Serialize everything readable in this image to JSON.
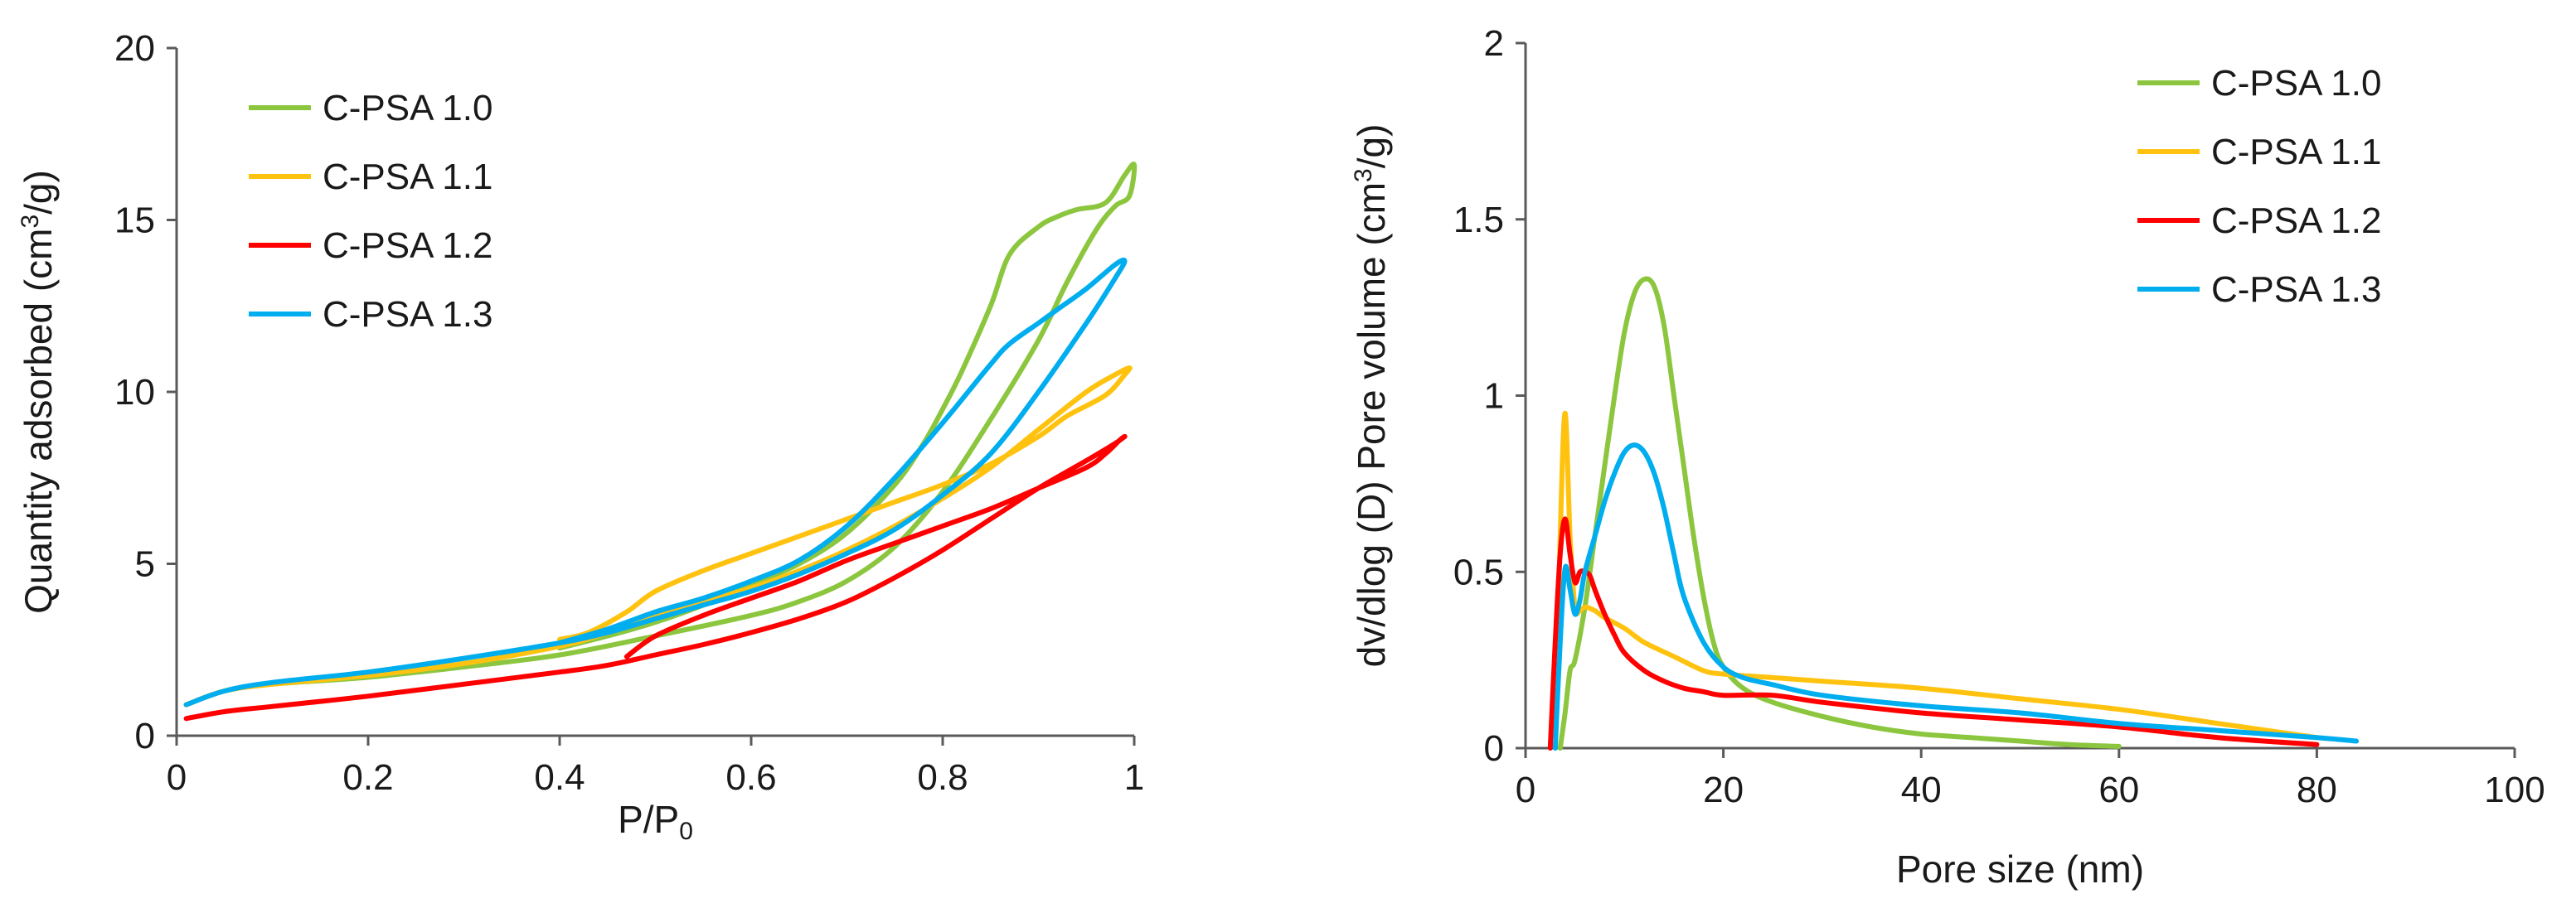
{
  "chart_data": [
    {
      "type": "line",
      "title": "",
      "xlabel": "P/P",
      "xlabel_sub": "0",
      "ylabel": "Quantity adsorbed  (cm",
      "ylabel_sup": "3",
      "ylabel_tail": "/g)",
      "xlim": [
        0,
        1
      ],
      "ylim": [
        0,
        20
      ],
      "xticks": [
        0,
        0.2,
        0.4,
        0.6,
        0.8,
        1
      ],
      "xtick_labels": [
        "0",
        "0.2",
        "0.4",
        "0.6",
        "0.8",
        "1"
      ],
      "yticks": [
        0,
        5,
        10,
        15,
        20
      ],
      "ytick_labels": [
        "0",
        "5",
        "10",
        "15",
        "20"
      ],
      "grid": false,
      "legend_position": "top-left",
      "series": [
        {
          "name": "C-PSA 1.0",
          "color": "#8CC63F",
          "x": [
            0.01,
            0.05,
            0.1,
            0.2,
            0.3,
            0.4,
            0.5,
            0.6,
            0.65,
            0.7,
            0.75,
            0.8,
            0.85,
            0.9,
            0.93,
            0.96,
            0.98,
            0.995,
            1.0,
            0.99,
            0.97,
            0.94,
            0.92,
            0.9,
            0.87,
            0.85,
            0.82,
            0.8,
            0.78,
            0.75,
            0.7,
            0.65,
            0.6,
            0.55,
            0.5,
            0.45,
            0.4
          ],
          "y": [
            0.9,
            1.3,
            1.5,
            1.7,
            2.0,
            2.35,
            2.9,
            3.5,
            3.9,
            4.5,
            5.5,
            7.1,
            9.2,
            11.5,
            13.2,
            14.7,
            15.4,
            15.7,
            16.6,
            16.3,
            15.5,
            15.3,
            15.1,
            14.8,
            14.0,
            12.5,
            10.6,
            9.5,
            8.5,
            7.3,
            5.9,
            5.0,
            4.4,
            3.8,
            3.3,
            2.9,
            2.55
          ]
        },
        {
          "name": "C-PSA 1.1",
          "color": "#FFC20E",
          "x": [
            0.01,
            0.05,
            0.1,
            0.2,
            0.3,
            0.4,
            0.45,
            0.5,
            0.55,
            0.6,
            0.65,
            0.7,
            0.75,
            0.8,
            0.85,
            0.9,
            0.95,
            0.98,
            0.995,
            0.99,
            0.97,
            0.93,
            0.9,
            0.85,
            0.8,
            0.75,
            0.7,
            0.65,
            0.6,
            0.55,
            0.5,
            0.47,
            0.43,
            0.4
          ],
          "y": [
            0.9,
            1.3,
            1.5,
            1.75,
            2.1,
            2.6,
            3.0,
            3.5,
            3.9,
            4.3,
            4.8,
            5.4,
            6.1,
            6.9,
            7.8,
            8.9,
            10.0,
            10.5,
            10.7,
            10.5,
            9.9,
            9.3,
            8.7,
            7.9,
            7.3,
            6.8,
            6.3,
            5.8,
            5.3,
            4.8,
            4.2,
            3.6,
            3.0,
            2.8
          ]
        },
        {
          "name": "C-PSA 1.2",
          "color": "#FF0000",
          "x": [
            0.01,
            0.05,
            0.1,
            0.2,
            0.3,
            0.4,
            0.45,
            0.5,
            0.55,
            0.6,
            0.65,
            0.7,
            0.75,
            0.8,
            0.85,
            0.9,
            0.95,
            0.98,
            0.99,
            0.985,
            0.97,
            0.95,
            0.9,
            0.85,
            0.8,
            0.75,
            0.7,
            0.65,
            0.6,
            0.55,
            0.5,
            0.47
          ],
          "y": [
            0.5,
            0.7,
            0.85,
            1.15,
            1.5,
            1.85,
            2.05,
            2.35,
            2.65,
            3.0,
            3.4,
            3.9,
            4.6,
            5.4,
            6.3,
            7.2,
            8.0,
            8.5,
            8.7,
            8.6,
            8.2,
            7.8,
            7.2,
            6.6,
            6.1,
            5.6,
            5.1,
            4.5,
            4.0,
            3.5,
            2.9,
            2.3
          ]
        },
        {
          "name": "C-PSA 1.3",
          "color": "#00AEEF",
          "x": [
            0.01,
            0.05,
            0.1,
            0.2,
            0.3,
            0.4,
            0.45,
            0.5,
            0.55,
            0.6,
            0.65,
            0.7,
            0.75,
            0.8,
            0.85,
            0.9,
            0.95,
            0.98,
            0.99,
            0.98,
            0.95,
            0.92,
            0.9,
            0.87,
            0.85,
            0.8,
            0.75,
            0.7,
            0.65,
            0.6,
            0.55,
            0.5,
            0.45,
            0.4
          ],
          "y": [
            0.9,
            1.3,
            1.55,
            1.85,
            2.25,
            2.7,
            3.0,
            3.4,
            3.8,
            4.2,
            4.7,
            5.3,
            6.0,
            7.0,
            8.2,
            10.0,
            12.0,
            13.3,
            13.8,
            13.7,
            13.0,
            12.4,
            12.0,
            11.4,
            10.8,
            9.1,
            7.5,
            6.1,
            5.1,
            4.5,
            4.0,
            3.6,
            3.1,
            2.7
          ]
        }
      ]
    },
    {
      "type": "line",
      "title": "",
      "xlabel": "Pore size (nm)",
      "ylabel": "dv/dlog  (D) Pore volume (cm",
      "ylabel_sup": "3",
      "ylabel_tail": "/g)",
      "xlim": [
        0,
        100
      ],
      "ylim": [
        0,
        2
      ],
      "xticks": [
        0,
        20,
        40,
        60,
        80,
        100
      ],
      "xtick_labels": [
        "0",
        "20",
        "40",
        "60",
        "80",
        "100"
      ],
      "yticks": [
        0,
        0.5,
        1,
        1.5,
        2
      ],
      "ytick_labels": [
        "0",
        "0.5",
        "1",
        "1.5",
        "2"
      ],
      "grid": false,
      "legend_position": "top-right",
      "series": [
        {
          "name": "C-PSA 1.0",
          "color": "#8CC63F",
          "x": [
            3.5,
            4,
            4.5,
            5,
            6,
            7,
            8,
            9,
            10,
            11,
            12,
            13,
            14,
            15,
            16,
            17,
            18,
            19,
            20,
            22,
            25,
            30,
            35,
            40,
            45,
            50,
            55,
            60
          ],
          "y": [
            0,
            0.1,
            0.22,
            0.25,
            0.4,
            0.6,
            0.8,
            1.0,
            1.18,
            1.29,
            1.33,
            1.31,
            1.2,
            1.0,
            0.8,
            0.6,
            0.43,
            0.3,
            0.23,
            0.17,
            0.13,
            0.09,
            0.06,
            0.04,
            0.03,
            0.02,
            0.01,
            0.005
          ]
        },
        {
          "name": "C-PSA 1.1",
          "color": "#FFC20E",
          "x": [
            3,
            3.5,
            4,
            4.5,
            5,
            5.5,
            6,
            7,
            8,
            10,
            12,
            15,
            18,
            20,
            25,
            30,
            40,
            50,
            60,
            70,
            80
          ],
          "y": [
            0.05,
            0.6,
            0.95,
            0.6,
            0.4,
            0.39,
            0.4,
            0.39,
            0.37,
            0.34,
            0.3,
            0.26,
            0.22,
            0.21,
            0.2,
            0.19,
            0.17,
            0.14,
            0.11,
            0.07,
            0.03
          ]
        },
        {
          "name": "C-PSA 1.2",
          "color": "#FF0000",
          "x": [
            2.5,
            3,
            3.5,
            4,
            4.5,
            5,
            5.5,
            6,
            6.5,
            7,
            8,
            9,
            10,
            12,
            14,
            16,
            18,
            20,
            25,
            30,
            40,
            50,
            60,
            70,
            80
          ],
          "y": [
            0,
            0.3,
            0.55,
            0.65,
            0.55,
            0.47,
            0.5,
            0.5,
            0.49,
            0.45,
            0.38,
            0.32,
            0.27,
            0.22,
            0.19,
            0.17,
            0.16,
            0.15,
            0.15,
            0.13,
            0.1,
            0.08,
            0.06,
            0.03,
            0.01
          ]
        },
        {
          "name": "C-PSA 1.3",
          "color": "#00AEEF",
          "x": [
            3,
            3.5,
            4,
            4.5,
            5,
            5.5,
            6,
            7,
            8,
            9,
            10,
            11,
            12,
            13,
            14,
            15,
            16,
            18,
            20,
            22,
            25,
            30,
            40,
            50,
            60,
            70,
            80,
            84
          ],
          "y": [
            0,
            0.3,
            0.51,
            0.45,
            0.38,
            0.42,
            0.5,
            0.6,
            0.7,
            0.78,
            0.84,
            0.86,
            0.84,
            0.78,
            0.68,
            0.55,
            0.43,
            0.3,
            0.23,
            0.2,
            0.18,
            0.15,
            0.12,
            0.1,
            0.07,
            0.05,
            0.03,
            0.02
          ]
        }
      ]
    }
  ]
}
